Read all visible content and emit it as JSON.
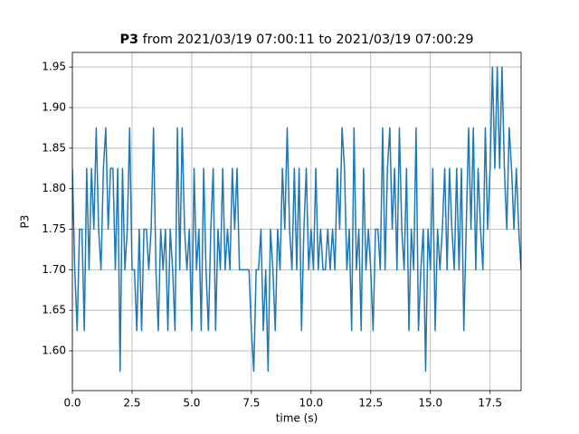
{
  "chart_data": {
    "type": "line",
    "title": "P3",
    "title_suffix": "from 2021/03/19 07:00:11 to 2021/03/19 07:00:29",
    "x_label": "time (s)",
    "y_label": "P3",
    "grid": true,
    "xlim": [
      0,
      18.8
    ],
    "ylim": [
      1.551,
      1.968
    ],
    "xticks": [
      {
        "value": 0,
        "label": "0.0"
      },
      2.5,
      {
        "value": 5,
        "label": "5.0"
      },
      7.5,
      {
        "value": 10,
        "label": "10.0"
      },
      12.5,
      {
        "value": 15,
        "label": "15.0"
      },
      17.5
    ],
    "yticks": [
      {
        "value": 1.6,
        "label": "1.60"
      },
      1.65,
      {
        "value": 1.7,
        "label": "1.70"
      },
      1.75,
      {
        "value": 1.8,
        "label": "1.80"
      },
      1.85,
      {
        "value": 1.9,
        "label": "1.90"
      },
      1.95
    ],
    "x": [
      0,
      0.1,
      0.2,
      0.3,
      0.4,
      0.5,
      0.6,
      0.7,
      0.8,
      0.9,
      1,
      1.1,
      1.2,
      1.3,
      1.4,
      1.5,
      1.6,
      1.7,
      1.8,
      1.9,
      2,
      2.1,
      2.2,
      2.3,
      2.4,
      2.5,
      2.6,
      2.7,
      2.8,
      2.9,
      3,
      3.1,
      3.2,
      3.3,
      3.4,
      3.5,
      3.6,
      3.7,
      3.8,
      3.9,
      4,
      4.1,
      4.2,
      4.3,
      4.4,
      4.5,
      4.6,
      4.7,
      4.8,
      4.9,
      5,
      5.1,
      5.2,
      5.3,
      5.4,
      5.5,
      5.6,
      5.7,
      5.8,
      5.9,
      6,
      6.1,
      6.2,
      6.3,
      6.4,
      6.5,
      6.6,
      6.7,
      6.8,
      6.9,
      7,
      7.1,
      7.2,
      7.3,
      7.4,
      7.5,
      7.6,
      7.7,
      7.8,
      7.9,
      8,
      8.1,
      8.2,
      8.3,
      8.4,
      8.5,
      8.6,
      8.7,
      8.8,
      8.9,
      9,
      9.1,
      9.2,
      9.3,
      9.4,
      9.5,
      9.6,
      9.7,
      9.8,
      9.9,
      10,
      10.1,
      10.2,
      10.3,
      10.4,
      10.5,
      10.6,
      10.7,
      10.8,
      10.9,
      11,
      11.1,
      11.2,
      11.3,
      11.4,
      11.5,
      11.6,
      11.7,
      11.8,
      11.9,
      12,
      12.1,
      12.2,
      12.3,
      12.4,
      12.5,
      12.6,
      12.7,
      12.8,
      12.9,
      13,
      13.1,
      13.2,
      13.3,
      13.4,
      13.5,
      13.6,
      13.7,
      13.8,
      13.9,
      14,
      14.1,
      14.2,
      14.3,
      14.4,
      14.5,
      14.6,
      14.7,
      14.8,
      14.9,
      15,
      15.1,
      15.2,
      15.3,
      15.4,
      15.5,
      15.6,
      15.7,
      15.8,
      15.9,
      16,
      16.1,
      16.2,
      16.3,
      16.4,
      16.5,
      16.6,
      16.7,
      16.8,
      16.9,
      17,
      17.1,
      17.2,
      17.3,
      17.4,
      17.5,
      17.6,
      17.7,
      17.8,
      17.9,
      18,
      18.1,
      18.2,
      18.3,
      18.4,
      18.5,
      18.6,
      18.7,
      18.8
    ],
    "series": [
      {
        "name": "P3",
        "color": "#1f77b4",
        "values": [
          1.825,
          1.7,
          1.625,
          1.75,
          1.75,
          1.625,
          1.825,
          1.7,
          1.825,
          1.75,
          1.875,
          1.75,
          1.7,
          1.825,
          1.875,
          1.75,
          1.825,
          1.825,
          1.7,
          1.825,
          1.575,
          1.825,
          1.7,
          1.75,
          1.875,
          1.7,
          1.7,
          1.625,
          1.75,
          1.625,
          1.75,
          1.75,
          1.7,
          1.75,
          1.875,
          1.7,
          1.625,
          1.75,
          1.7,
          1.75,
          1.625,
          1.75,
          1.7,
          1.625,
          1.875,
          1.7,
          1.875,
          1.75,
          1.7,
          1.75,
          1.625,
          1.825,
          1.7,
          1.75,
          1.625,
          1.825,
          1.7,
          1.625,
          1.75,
          1.825,
          1.625,
          1.75,
          1.7,
          1.825,
          1.7,
          1.75,
          1.7,
          1.825,
          1.75,
          1.825,
          1.7,
          1.7,
          1.7,
          1.7,
          1.7,
          1.625,
          1.575,
          1.7,
          1.7,
          1.75,
          1.625,
          1.7,
          1.575,
          1.75,
          1.7,
          1.625,
          1.75,
          1.7,
          1.825,
          1.75,
          1.875,
          1.75,
          1.7,
          1.825,
          1.7,
          1.825,
          1.625,
          1.75,
          1.825,
          1.7,
          1.75,
          1.7,
          1.825,
          1.7,
          1.75,
          1.7,
          1.7,
          1.75,
          1.7,
          1.75,
          1.7,
          1.825,
          1.75,
          1.875,
          1.825,
          1.7,
          1.75,
          1.625,
          1.875,
          1.7,
          1.75,
          1.625,
          1.825,
          1.7,
          1.75,
          1.7,
          1.625,
          1.75,
          1.75,
          1.7,
          1.875,
          1.7,
          1.825,
          1.875,
          1.75,
          1.825,
          1.7,
          1.875,
          1.75,
          1.7,
          1.825,
          1.625,
          1.75,
          1.7,
          1.875,
          1.625,
          1.7,
          1.75,
          1.575,
          1.75,
          1.7,
          1.825,
          1.625,
          1.75,
          1.7,
          1.75,
          1.825,
          1.7,
          1.825,
          1.75,
          1.7,
          1.825,
          1.7,
          1.825,
          1.625,
          1.75,
          1.875,
          1.75,
          1.875,
          1.7,
          1.825,
          1.75,
          1.7,
          1.875,
          1.75,
          1.825,
          1.95,
          1.825,
          1.95,
          1.825,
          1.95,
          1.825,
          1.75,
          1.875,
          1.825,
          1.75,
          1.825,
          1.75,
          1.7
        ]
      }
    ]
  }
}
